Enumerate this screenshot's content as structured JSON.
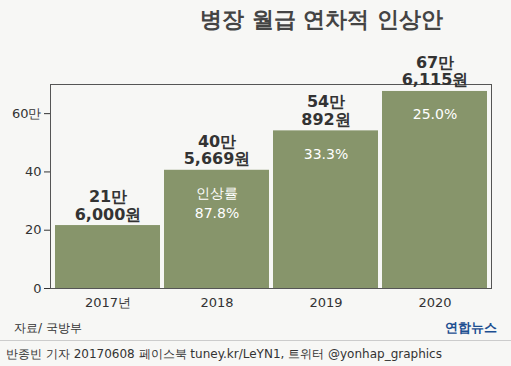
{
  "chart_data": {
    "type": "bar",
    "title": "병장 월급 연차적 인상안",
    "categories": [
      "2017년",
      "2018",
      "2019",
      "2020"
    ],
    "values": [
      21.6,
      40.5669,
      54.0892,
      67.6115
    ],
    "value_labels": [
      "21만\n6,000원",
      "40만\n5,669원",
      "54만\n892원",
      "67만\n6,115원"
    ],
    "data_labels": true,
    "rate_label": "인상률",
    "rates": [
      null,
      87.8,
      33.3,
      25.0
    ],
    "rate_labels": [
      null,
      "87.8%",
      "33.3%",
      "25.0%"
    ],
    "color": "#87956b",
    "ylim": [
      0,
      70
    ],
    "yticks": [
      0,
      20,
      40,
      {
        "value": 60,
        "label": "60만"
      }
    ],
    "grid": false,
    "source": "자료/ 국방부",
    "logo": "연합뉴스",
    "footer": "반종빈 기자 20170608 페이스북 tuney.kr/LeYN1, 트위터 @yonhap_graphics"
  }
}
